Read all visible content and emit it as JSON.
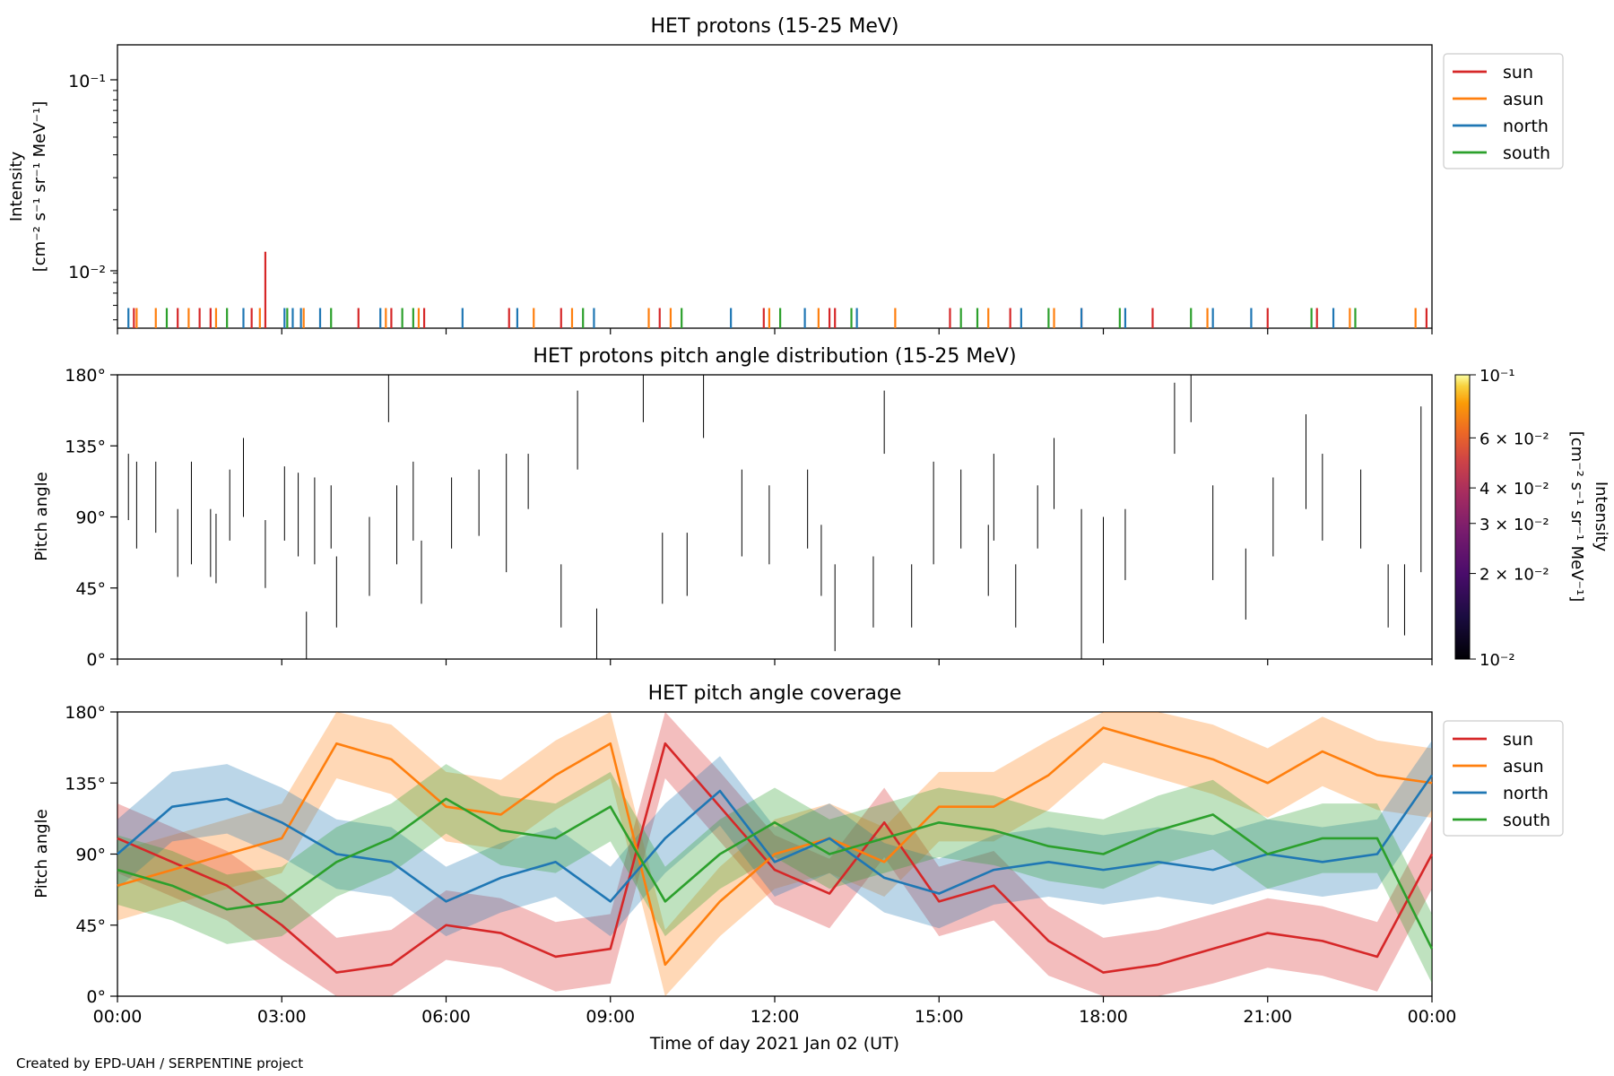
{
  "footer": "Created by EPD-UAH / SERPENTINE project",
  "chart_data": [
    {
      "type": "line",
      "title": "HET protons (15-25 MeV)",
      "ylabel": "Intensity",
      "ylabel_units": "[cm⁻² s⁻¹ sr⁻¹ MeV⁻¹]",
      "yscale": "log",
      "ylim": [
        0.0045,
        0.16
      ],
      "ytick_labels": [
        "10⁻²",
        "10⁻¹"
      ],
      "xlim_hours": [
        0,
        24
      ],
      "grid": false,
      "legend_position": "outside-top-right",
      "legend": [
        {
          "name": "sun",
          "color": "#d62728"
        },
        {
          "name": "asun",
          "color": "#ff7f0e"
        },
        {
          "name": "north",
          "color": "#1f77b4"
        },
        {
          "name": "south",
          "color": "#2ca02c"
        }
      ],
      "series": [
        {
          "name": "sun",
          "color": "#d62728",
          "x_hours": [
            0.3,
            1.1,
            1.5,
            1.7,
            2.45,
            2.7,
            4.4,
            5.0,
            5.6,
            7.15,
            8.1,
            9.9,
            11.8,
            13.0,
            13.1,
            15.2,
            16.3,
            17.6,
            18.9,
            21.0,
            21.9,
            23.9
          ],
          "intensity": [
            0.0058,
            0.0058,
            0.0058,
            0.0058,
            0.0058,
            0.0118,
            0.0058,
            0.0058,
            0.0058,
            0.0058,
            0.0058,
            0.0058,
            0.0058,
            0.0058,
            0.0058,
            0.0058,
            0.0058,
            0.0058,
            0.0058,
            0.0058,
            0.0058,
            0.0058
          ]
        },
        {
          "name": "asun",
          "color": "#ff7f0e",
          "x_hours": [
            0.35,
            0.7,
            1.3,
            1.8,
            2.6,
            3.4,
            4.9,
            5.5,
            7.6,
            8.3,
            9.7,
            10.1,
            11.9,
            12.8,
            14.2,
            15.9,
            17.1,
            19.9,
            22.5,
            23.7
          ],
          "intensity": [
            0.0058,
            0.0058,
            0.0058,
            0.0058,
            0.0058,
            0.0058,
            0.0058,
            0.0058,
            0.0058,
            0.0058,
            0.0058,
            0.0058,
            0.0058,
            0.0058,
            0.0058,
            0.0058,
            0.0058,
            0.0058,
            0.0058,
            0.0058
          ]
        },
        {
          "name": "north",
          "color": "#1f77b4",
          "x_hours": [
            0.2,
            2.3,
            3.05,
            3.2,
            3.35,
            3.7,
            4.8,
            6.3,
            7.3,
            8.7,
            11.2,
            12.55,
            13.5,
            16.5,
            17.6,
            18.4,
            20.0,
            20.7,
            22.2
          ],
          "intensity": [
            0.0058,
            0.0058,
            0.0058,
            0.0058,
            0.0058,
            0.0058,
            0.0058,
            0.0058,
            0.0058,
            0.0058,
            0.0058,
            0.0058,
            0.0058,
            0.0058,
            0.0058,
            0.0058,
            0.0058,
            0.0058,
            0.0058
          ]
        },
        {
          "name": "south",
          "color": "#2ca02c",
          "x_hours": [
            0.9,
            2.0,
            3.1,
            3.9,
            5.2,
            5.4,
            8.5,
            10.3,
            12.1,
            13.4,
            15.4,
            15.7,
            17.0,
            18.3,
            19.6,
            21.8,
            22.6
          ],
          "intensity": [
            0.0058,
            0.0058,
            0.0058,
            0.0058,
            0.0058,
            0.0058,
            0.0058,
            0.0058,
            0.0058,
            0.0058,
            0.0058,
            0.0058,
            0.0058,
            0.0058,
            0.0058,
            0.0058,
            0.0058
          ]
        }
      ]
    },
    {
      "type": "heatmap",
      "title": "HET protons pitch angle distribution (15-25 MeV)",
      "ylabel": "Pitch angle",
      "ylim": [
        0,
        180
      ],
      "ytick_labels": [
        "0°",
        "45°",
        "90°",
        "135°",
        "180°"
      ],
      "xlim_hours": [
        0,
        24
      ],
      "colorbar": {
        "scale": "log",
        "range": [
          0.01,
          0.1
        ],
        "colormap": "inferno",
        "label": "Intensity",
        "units": "[cm⁻² s⁻¹ sr⁻¹ MeV⁻¹]",
        "tick_labels": [
          "10⁻²",
          "2 × 10⁻²",
          "3 × 10⁻²",
          "4 × 10⁻²",
          "6 × 10⁻²",
          "10⁻¹"
        ]
      },
      "tracks": [
        {
          "x": 0.2,
          "pa": [
            88,
            130
          ]
        },
        {
          "x": 0.35,
          "pa": [
            70,
            125
          ]
        },
        {
          "x": 0.7,
          "pa": [
            80,
            125
          ]
        },
        {
          "x": 1.1,
          "pa": [
            52,
            95
          ]
        },
        {
          "x": 1.35,
          "pa": [
            60,
            125
          ]
        },
        {
          "x": 1.7,
          "pa": [
            52,
            95
          ]
        },
        {
          "x": 1.8,
          "pa": [
            48,
            92
          ]
        },
        {
          "x": 2.05,
          "pa": [
            75,
            120
          ]
        },
        {
          "x": 2.3,
          "pa": [
            90,
            140
          ]
        },
        {
          "x": 2.7,
          "pa": [
            45,
            88
          ]
        },
        {
          "x": 3.05,
          "pa": [
            75,
            122
          ]
        },
        {
          "x": 3.3,
          "pa": [
            65,
            118
          ]
        },
        {
          "x": 3.45,
          "pa": [
            0,
            30
          ]
        },
        {
          "x": 3.6,
          "pa": [
            60,
            115
          ]
        },
        {
          "x": 3.9,
          "pa": [
            70,
            110
          ]
        },
        {
          "x": 4.0,
          "pa": [
            20,
            65
          ]
        },
        {
          "x": 4.6,
          "pa": [
            40,
            90
          ]
        },
        {
          "x": 4.95,
          "pa": [
            150,
            180
          ]
        },
        {
          "x": 5.1,
          "pa": [
            60,
            110
          ]
        },
        {
          "x": 5.4,
          "pa": [
            75,
            125
          ]
        },
        {
          "x": 5.55,
          "pa": [
            35,
            75
          ]
        },
        {
          "x": 6.1,
          "pa": [
            70,
            115
          ]
        },
        {
          "x": 6.6,
          "pa": [
            78,
            120
          ]
        },
        {
          "x": 7.1,
          "pa": [
            55,
            130
          ]
        },
        {
          "x": 7.5,
          "pa": [
            95,
            130
          ]
        },
        {
          "x": 8.1,
          "pa": [
            20,
            60
          ]
        },
        {
          "x": 8.4,
          "pa": [
            120,
            170
          ]
        },
        {
          "x": 8.75,
          "pa": [
            0,
            32
          ]
        },
        {
          "x": 9.6,
          "pa": [
            150,
            180
          ]
        },
        {
          "x": 9.95,
          "pa": [
            35,
            80
          ]
        },
        {
          "x": 10.4,
          "pa": [
            40,
            80
          ]
        },
        {
          "x": 10.7,
          "pa": [
            140,
            180
          ]
        },
        {
          "x": 11.4,
          "pa": [
            65,
            120
          ]
        },
        {
          "x": 11.9,
          "pa": [
            60,
            110
          ]
        },
        {
          "x": 12.6,
          "pa": [
            70,
            120
          ]
        },
        {
          "x": 12.85,
          "pa": [
            40,
            85
          ]
        },
        {
          "x": 13.1,
          "pa": [
            5,
            60
          ]
        },
        {
          "x": 13.8,
          "pa": [
            20,
            65
          ]
        },
        {
          "x": 14.0,
          "pa": [
            130,
            170
          ]
        },
        {
          "x": 14.5,
          "pa": [
            20,
            60
          ]
        },
        {
          "x": 14.9,
          "pa": [
            60,
            125
          ]
        },
        {
          "x": 15.4,
          "pa": [
            70,
            120
          ]
        },
        {
          "x": 15.9,
          "pa": [
            40,
            85
          ]
        },
        {
          "x": 16.0,
          "pa": [
            75,
            130
          ]
        },
        {
          "x": 16.4,
          "pa": [
            20,
            60
          ]
        },
        {
          "x": 16.8,
          "pa": [
            70,
            110
          ]
        },
        {
          "x": 17.1,
          "pa": [
            95,
            140
          ]
        },
        {
          "x": 17.6,
          "pa": [
            0,
            95
          ]
        },
        {
          "x": 18.0,
          "pa": [
            10,
            90
          ]
        },
        {
          "x": 18.4,
          "pa": [
            50,
            95
          ]
        },
        {
          "x": 19.3,
          "pa": [
            130,
            175
          ]
        },
        {
          "x": 19.6,
          "pa": [
            150,
            180
          ]
        },
        {
          "x": 20.0,
          "pa": [
            50,
            110
          ]
        },
        {
          "x": 20.6,
          "pa": [
            25,
            70
          ]
        },
        {
          "x": 21.1,
          "pa": [
            65,
            115
          ]
        },
        {
          "x": 21.7,
          "pa": [
            95,
            155
          ]
        },
        {
          "x": 22.0,
          "pa": [
            75,
            130
          ]
        },
        {
          "x": 22.7,
          "pa": [
            70,
            120
          ]
        },
        {
          "x": 23.2,
          "pa": [
            20,
            60
          ]
        },
        {
          "x": 23.5,
          "pa": [
            15,
            60
          ]
        },
        {
          "x": 23.8,
          "pa": [
            55,
            160
          ]
        }
      ]
    },
    {
      "type": "area",
      "title": "HET pitch angle coverage",
      "ylabel": "Pitch angle",
      "xlabel": "Time of day 2021 Jan 02 (UT)",
      "ylim": [
        0,
        180
      ],
      "ytick_labels": [
        "0°",
        "45°",
        "90°",
        "135°",
        "180°"
      ],
      "xtick_labels": [
        "00:00",
        "03:00",
        "06:00",
        "09:00",
        "12:00",
        "15:00",
        "18:00",
        "21:00",
        "00:00"
      ],
      "xlim_hours": [
        0,
        24
      ],
      "grid": false,
      "legend_position": "outside-top-right",
      "legend": [
        {
          "name": "sun",
          "color": "#d62728"
        },
        {
          "name": "asun",
          "color": "#ff7f0e"
        },
        {
          "name": "north",
          "color": "#1f77b4"
        },
        {
          "name": "south",
          "color": "#2ca02c"
        }
      ],
      "band_halfwidth_deg": 22,
      "x_hours": [
        0,
        1,
        2,
        3,
        4,
        5,
        6,
        7,
        8,
        9,
        10,
        11,
        12,
        13,
        14,
        15,
        16,
        17,
        18,
        19,
        20,
        21,
        22,
        23,
        24
      ],
      "series": [
        {
          "name": "sun",
          "color": "#d62728",
          "values": [
            100,
            85,
            70,
            45,
            15,
            20,
            45,
            40,
            25,
            30,
            160,
            120,
            80,
            65,
            110,
            60,
            70,
            35,
            15,
            20,
            30,
            40,
            35,
            25,
            90
          ]
        },
        {
          "name": "asun",
          "color": "#ff7f0e",
          "values": [
            70,
            80,
            90,
            100,
            160,
            150,
            120,
            115,
            140,
            160,
            20,
            60,
            90,
            100,
            85,
            120,
            120,
            140,
            170,
            160,
            150,
            135,
            155,
            140,
            135
          ]
        },
        {
          "name": "north",
          "color": "#1f77b4",
          "values": [
            90,
            120,
            125,
            110,
            90,
            85,
            60,
            75,
            85,
            60,
            100,
            130,
            85,
            100,
            75,
            65,
            80,
            85,
            80,
            85,
            80,
            90,
            85,
            90,
            140
          ]
        },
        {
          "name": "south",
          "color": "#2ca02c",
          "values": [
            80,
            70,
            55,
            60,
            85,
            100,
            125,
            105,
            100,
            120,
            60,
            90,
            110,
            90,
            100,
            110,
            105,
            95,
            90,
            105,
            115,
            90,
            100,
            100,
            30
          ]
        }
      ]
    }
  ]
}
